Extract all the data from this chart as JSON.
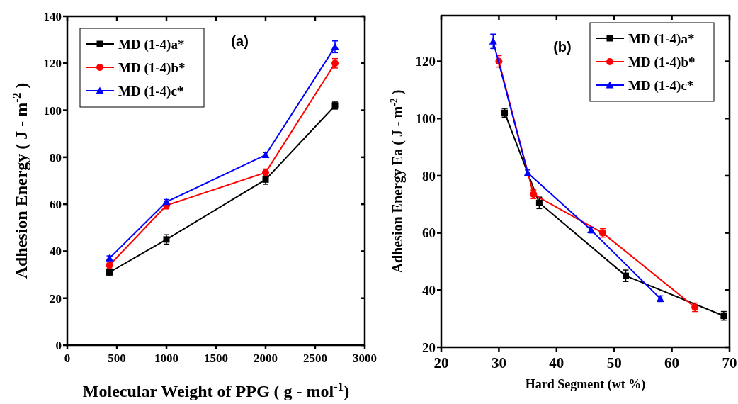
{
  "chart_data": [
    {
      "type": "line",
      "xlabel": "Molecular Weight of PPG ( g - mol$^{-1}$)",
      "ylabel": "Adhesion Energy ( J - m$^{-2}$ )",
      "annotations": [
        "(a)"
      ],
      "xlim": [
        0,
        3000
      ],
      "xticks": [
        0,
        500,
        1000,
        1500,
        2000,
        2500,
        3000
      ],
      "ylim": [
        0,
        140
      ],
      "yticks": [
        0,
        20,
        40,
        60,
        80,
        100,
        120,
        140
      ],
      "legend": "top left",
      "grid": false,
      "line_style": "solid",
      "x": [
        425,
        1000,
        2000,
        2700
      ],
      "series": [
        {
          "name": "MD (1-4)a*",
          "color": "#000000",
          "marker": "square",
          "values": [
            31,
            45,
            70.5,
            102
          ],
          "errors": [
            1.5,
            2,
            2,
            1.5
          ]
        },
        {
          "name": "MD (1-4)b*",
          "color": "#ff0000",
          "marker": "circle",
          "values": [
            34,
            59.5,
            73.5,
            120
          ],
          "errors": [
            1.5,
            1.5,
            1.5,
            2
          ]
        },
        {
          "name": "MD (1-4)c*",
          "color": "#0000ff",
          "marker": "triangle",
          "values": [
            37,
            61,
            81,
            127
          ],
          "errors": [
            1,
            1,
            1,
            2.5
          ]
        }
      ]
    },
    {
      "type": "line",
      "xlabel": "Hard Segment (wt %)",
      "ylabel": "Adhesion Energy Ea ( J - m$^{-2}$ )",
      "annotations": [
        "(b)"
      ],
      "xlim": [
        20,
        70
      ],
      "xticks": [
        20,
        30,
        40,
        50,
        60,
        70
      ],
      "ylim": [
        20,
        136
      ],
      "yticks": [
        20,
        40,
        60,
        80,
        100,
        120
      ],
      "legend": "top right",
      "grid": false,
      "line_style": "solid",
      "series": [
        {
          "name": "MD (1-4)a*",
          "color": "#000000",
          "marker": "square",
          "x": [
            31,
            37,
            52,
            69
          ],
          "values": [
            102,
            70.5,
            45,
            31
          ],
          "errors": [
            1.5,
            2,
            2,
            1.5
          ]
        },
        {
          "name": "MD (1-4)b*",
          "color": "#ff0000",
          "marker": "circle",
          "x": [
            30,
            36,
            48,
            64
          ],
          "values": [
            120,
            73.5,
            60,
            34
          ],
          "errors": [
            2,
            1.5,
            1.5,
            1.5
          ]
        },
        {
          "name": "MD (1-4)c*",
          "color": "#0000ff",
          "marker": "triangle",
          "x": [
            29,
            35,
            46,
            58
          ],
          "values": [
            127,
            81,
            61,
            37
          ],
          "errors": [
            2.5,
            1,
            1,
            1
          ]
        }
      ]
    }
  ]
}
